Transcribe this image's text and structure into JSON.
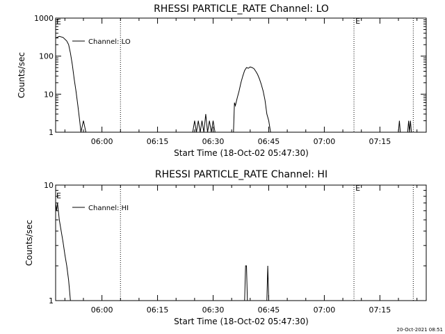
{
  "footer": {
    "timestamp": "20-Oct-2021 08:51"
  },
  "chart_data": [
    {
      "type": "line",
      "title": "RHESSI PARTICLE_RATE Channel: LO",
      "xlabel": "Start Time (18-Oct-02 05:47:30)",
      "ylabel": "Counts/sec",
      "y_scale": "log",
      "ylim": [
        1,
        1000
      ],
      "y_ticks": [
        1,
        10,
        100,
        1000
      ],
      "y_tick_labels": [
        "1",
        "10",
        "100",
        "1000"
      ],
      "xlim": [
        "05:47:30",
        "07:27:30"
      ],
      "x_ticks": [
        "06:00",
        "06:15",
        "06:30",
        "06:45",
        "07:00",
        "07:15"
      ],
      "legend": {
        "placement": "top-left",
        "entries": [
          "Channel: LO"
        ]
      },
      "markers": [
        {
          "x": "06:05",
          "label": ""
        },
        {
          "x": "07:08",
          "label": "E"
        },
        {
          "x": "07:24",
          "label": ""
        }
      ],
      "top_left_marker": "E",
      "series": [
        {
          "name": "Channel: LO",
          "points": [
            [
              "05:47:30",
              300
            ],
            [
              "05:48:30",
              330
            ],
            [
              "05:49:30",
              310
            ],
            [
              "05:50:30",
              250
            ],
            [
              "05:51:00",
              200
            ],
            [
              "05:51:30",
              120
            ],
            [
              "05:52:00",
              60
            ],
            [
              "05:52:30",
              25
            ],
            [
              "05:53:00",
              12
            ],
            [
              "05:53:30",
              5
            ],
            [
              "05:54:00",
              2
            ],
            [
              "05:54:20",
              1
            ],
            [
              "05:55:00",
              2
            ],
            [
              "05:55:40",
              1
            ],
            [
              "05:56:00",
              1
            ],
            [
              "06:24:30",
              1
            ],
            [
              "06:25:00",
              2
            ],
            [
              "06:25:30",
              1
            ],
            [
              "06:26:00",
              2
            ],
            [
              "06:26:30",
              1
            ],
            [
              "06:27:00",
              2
            ],
            [
              "06:27:30",
              1
            ],
            [
              "06:28:00",
              3
            ],
            [
              "06:28:30",
              1
            ],
            [
              "06:29:00",
              2
            ],
            [
              "06:29:30",
              1
            ],
            [
              "06:30:00",
              2
            ],
            [
              "06:30:30",
              1
            ],
            [
              "06:35:30",
              1
            ],
            [
              "06:35:45",
              6
            ],
            [
              "06:36:00",
              5
            ],
            [
              "06:36:30",
              8
            ],
            [
              "06:37:00",
              12
            ],
            [
              "06:37:30",
              20
            ],
            [
              "06:38:00",
              30
            ],
            [
              "06:38:30",
              42
            ],
            [
              "06:39:00",
              50
            ],
            [
              "06:39:30",
              48
            ],
            [
              "06:40:00",
              52
            ],
            [
              "06:40:30",
              50
            ],
            [
              "06:41:00",
              47
            ],
            [
              "06:41:30",
              40
            ],
            [
              "06:42:00",
              33
            ],
            [
              "06:42:30",
              25
            ],
            [
              "06:43:00",
              18
            ],
            [
              "06:43:30",
              12
            ],
            [
              "06:44:00",
              7
            ],
            [
              "06:44:30",
              3
            ],
            [
              "06:45:00",
              2
            ],
            [
              "06:45:30",
              1
            ],
            [
              "07:20:00",
              1
            ],
            [
              "07:20:15",
              2
            ],
            [
              "07:20:30",
              1
            ],
            [
              "07:22:30",
              1
            ],
            [
              "07:22:45",
              2
            ],
            [
              "07:23:00",
              1
            ],
            [
              "07:23:15",
              2
            ],
            [
              "07:23:30",
              1
            ]
          ]
        }
      ]
    },
    {
      "type": "line",
      "title": "RHESSI PARTICLE_RATE Channel: HI",
      "xlabel": "Start Time (18-Oct-02 05:47:30)",
      "ylabel": "Counts/sec",
      "y_scale": "log",
      "ylim": [
        1,
        10
      ],
      "y_ticks": [
        1,
        10
      ],
      "y_tick_labels": [
        "1",
        "10"
      ],
      "xlim": [
        "05:47:30",
        "07:27:30"
      ],
      "x_ticks": [
        "06:00",
        "06:15",
        "06:30",
        "06:45",
        "07:00",
        "07:15"
      ],
      "legend": {
        "placement": "top-left",
        "entries": [
          "Channel: HI"
        ]
      },
      "markers": [
        {
          "x": "06:05",
          "label": ""
        },
        {
          "x": "07:08",
          "label": "E"
        },
        {
          "x": "07:24",
          "label": ""
        }
      ],
      "top_left_marker": "E",
      "series": [
        {
          "name": "Channel: HI",
          "points": [
            [
              "05:47:30",
              7
            ],
            [
              "05:47:45",
              6
            ],
            [
              "05:48:00",
              7
            ],
            [
              "05:48:30",
              5
            ],
            [
              "05:49:00",
              4
            ],
            [
              "05:49:30",
              3.2
            ],
            [
              "05:50:00",
              2.5
            ],
            [
              "05:50:30",
              2
            ],
            [
              "05:51:00",
              1.5
            ],
            [
              "05:51:30",
              1
            ],
            [
              "06:38:30",
              1
            ],
            [
              "06:38:45",
              2
            ],
            [
              "06:39:00",
              2
            ],
            [
              "06:39:15",
              1
            ],
            [
              "06:44:30",
              1
            ],
            [
              "06:44:45",
              2
            ],
            [
              "06:45:00",
              1
            ]
          ]
        }
      ]
    }
  ]
}
